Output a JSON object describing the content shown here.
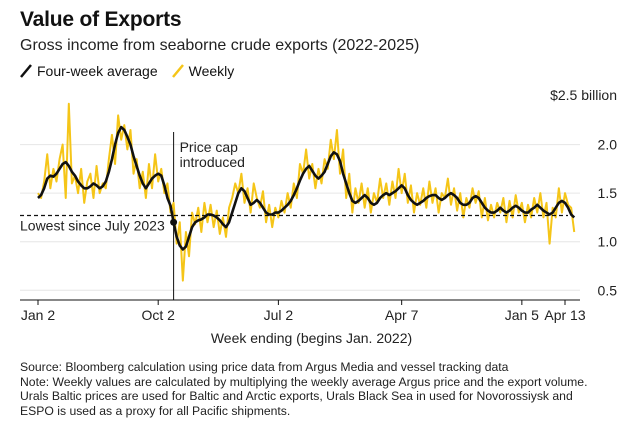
{
  "title": "Value of Exports",
  "subtitle": "Gross income from seaborne crude exports (2022-2025)",
  "chart_data": {
    "type": "line",
    "xlabel": "Week ending (begins Jan. 2022)",
    "ylabel": "",
    "y_unit_label": "$2.5 billion",
    "x_ticks": [
      "Jan 2",
      "Oct 2",
      "Jul 2",
      "Apr 7",
      "Jan 5",
      "Apr 13"
    ],
    "x_tick_weeks": [
      0,
      39,
      78,
      118,
      157,
      171
    ],
    "y_ticks": [
      "0.5",
      "1.0",
      "1.5",
      "2.0"
    ],
    "y_tick_values": [
      0.5,
      1.0,
      1.5,
      2.0
    ],
    "ylim": [
      0.4,
      2.5
    ],
    "grid": "horizontal",
    "legend_position": "top-left",
    "series": [
      {
        "name": "Four-week average",
        "color": "#111111",
        "values": [
          1.45,
          1.48,
          1.55,
          1.65,
          1.68,
          1.67,
          1.7,
          1.75,
          1.8,
          1.82,
          1.78,
          1.72,
          1.68,
          1.62,
          1.58,
          1.55,
          1.55,
          1.57,
          1.6,
          1.58,
          1.55,
          1.57,
          1.62,
          1.72,
          1.85,
          2.0,
          2.12,
          2.18,
          2.15,
          2.08,
          2.0,
          1.88,
          1.78,
          1.68,
          1.6,
          1.55,
          1.6,
          1.65,
          1.68,
          1.7,
          1.68,
          1.58,
          1.45,
          1.37,
          1.2,
          1.05,
          0.96,
          0.92,
          0.95,
          1.05,
          1.15,
          1.2,
          1.22,
          1.23,
          1.25,
          1.28,
          1.28,
          1.27,
          1.25,
          1.22,
          1.18,
          1.15,
          1.2,
          1.3,
          1.4,
          1.5,
          1.55,
          1.52,
          1.45,
          1.38,
          1.4,
          1.43,
          1.4,
          1.35,
          1.3,
          1.28,
          1.28,
          1.3,
          1.3,
          1.32,
          1.35,
          1.38,
          1.42,
          1.48,
          1.55,
          1.63,
          1.7,
          1.75,
          1.78,
          1.73,
          1.68,
          1.65,
          1.68,
          1.72,
          1.8,
          1.88,
          1.92,
          1.9,
          1.83,
          1.7,
          1.6,
          1.5,
          1.42,
          1.4,
          1.42,
          1.45,
          1.48,
          1.45,
          1.4,
          1.38,
          1.4,
          1.45,
          1.48,
          1.5,
          1.48,
          1.5,
          1.52,
          1.55,
          1.58,
          1.55,
          1.48,
          1.43,
          1.4,
          1.38,
          1.4,
          1.42,
          1.45,
          1.47,
          1.48,
          1.48,
          1.45,
          1.43,
          1.45,
          1.48,
          1.5,
          1.48,
          1.45,
          1.4,
          1.38,
          1.38,
          1.4,
          1.45,
          1.47,
          1.45,
          1.4,
          1.35,
          1.32,
          1.3,
          1.3,
          1.32,
          1.35,
          1.32,
          1.3,
          1.32,
          1.35,
          1.37,
          1.35,
          1.32,
          1.3,
          1.3,
          1.33,
          1.35,
          1.38,
          1.35,
          1.32,
          1.3,
          1.28,
          1.3,
          1.35,
          1.4,
          1.42,
          1.4,
          1.35,
          1.28,
          1.25
        ]
      },
      {
        "name": "Weekly",
        "color": "#f5c518",
        "values": [
          1.5,
          1.45,
          1.62,
          1.9,
          1.55,
          1.75,
          1.62,
          1.85,
          2.0,
          1.45,
          2.42,
          1.6,
          1.68,
          1.5,
          1.75,
          1.4,
          1.62,
          1.7,
          1.45,
          1.78,
          1.5,
          1.6,
          1.55,
          1.85,
          2.1,
          1.8,
          2.3,
          2.05,
          2.2,
          1.95,
          2.15,
          1.7,
          1.85,
          1.55,
          1.72,
          1.45,
          1.8,
          1.55,
          1.9,
          1.62,
          1.75,
          1.5,
          1.6,
          1.3,
          1.4,
          0.98,
          1.2,
          0.6,
          1.1,
          0.85,
          1.3,
          1.18,
          1.35,
          1.1,
          1.4,
          1.2,
          1.38,
          1.15,
          1.32,
          1.08,
          1.25,
          1.05,
          1.35,
          1.45,
          1.6,
          1.5,
          1.7,
          1.4,
          1.55,
          1.3,
          1.6,
          1.45,
          1.35,
          1.52,
          1.2,
          1.38,
          1.15,
          1.35,
          1.25,
          1.42,
          1.3,
          1.5,
          1.35,
          1.6,
          1.45,
          1.8,
          1.7,
          1.95,
          1.65,
          1.8,
          1.55,
          1.75,
          1.6,
          1.85,
          1.75,
          2.05,
          1.85,
          2.15,
          1.7,
          1.95,
          1.45,
          1.7,
          1.3,
          1.55,
          1.4,
          1.6,
          1.35,
          1.55,
          1.3,
          1.5,
          1.4,
          1.65,
          1.45,
          1.6,
          1.38,
          1.62,
          1.45,
          1.75,
          1.5,
          1.7,
          1.4,
          1.58,
          1.3,
          1.5,
          1.38,
          1.55,
          1.35,
          1.62,
          1.4,
          1.55,
          1.3,
          1.5,
          1.45,
          1.65,
          1.38,
          1.55,
          1.32,
          1.5,
          1.25,
          1.45,
          1.35,
          1.55,
          1.4,
          1.52,
          1.25,
          1.45,
          1.22,
          1.38,
          1.25,
          1.4,
          1.3,
          1.45,
          1.2,
          1.42,
          1.25,
          1.48,
          1.3,
          1.4,
          1.2,
          1.38,
          1.25,
          1.45,
          1.3,
          1.5,
          1.25,
          1.4,
          0.98,
          1.35,
          1.25,
          1.55,
          1.3,
          1.5,
          1.38,
          1.35,
          1.1
        ]
      }
    ],
    "reference_line": {
      "value": 1.27,
      "label": "Lowest since July 2023",
      "style": "dashed"
    },
    "annotation": {
      "label": "Price cap introduced",
      "week": 44,
      "line1": "Price cap",
      "line2": "introduced"
    }
  },
  "notes": {
    "source": "Source: Bloomberg calculation using price data from Argus Media and vessel tracking data",
    "note_line1": "Note: Weekly values are calculated by multiplying the weekly average Argus price and the export volume.",
    "note_line2": "Urals Baltic prices are used for Baltic and Arctic exports, Urals Black Sea in used for Novorossiysk and",
    "note_line3": "ESPO is used as a proxy for all Pacific shipments."
  }
}
